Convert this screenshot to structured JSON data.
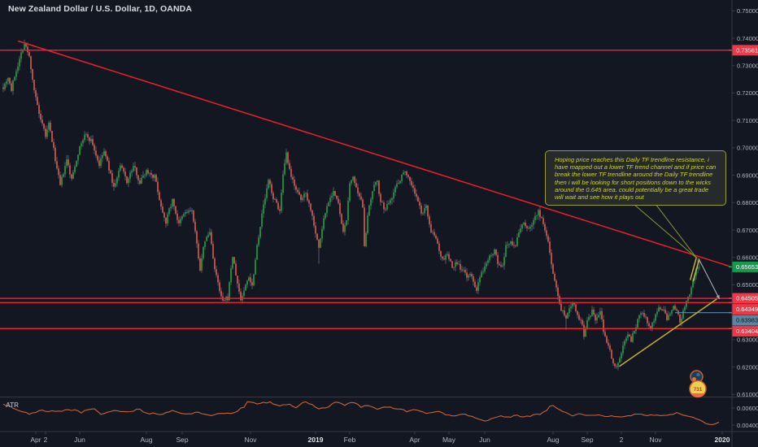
{
  "header": {
    "title": "New Zealand Dollar / U.S. Dollar, 1D, OANDA"
  },
  "annotation": {
    "lines": [
      "Hoping price reaches this Daily TF trendline resistance, i",
      "have mapped out a lower TF trend channel and if price can",
      "break the lower TF trendline around the Daily TF trendline",
      "then i will be looking for short positions down to the wicks",
      "around the 0.645 area. could potentially be a great trade",
      "will wait and see how it plays out"
    ]
  },
  "price_axis": {
    "labels": [
      "0.75000",
      "0.74000",
      "0.73000",
      "0.72000",
      "0.71000",
      "0.70000",
      "0.69000",
      "0.68000",
      "0.67000",
      "0.66000",
      "0.65000",
      "0.64000",
      "0.63000",
      "0.62000",
      "0.61000"
    ],
    "top_price": 0.75,
    "step": 0.01
  },
  "atr_axis": {
    "labels": [
      {
        "value": "0.00600",
        "v": 0.006
      },
      {
        "value": "0.00400",
        "v": 0.004
      }
    ]
  },
  "price_tags": [
    {
      "value": "0.73561",
      "price": 0.73561,
      "bg": "#f23645",
      "fg": "#ffffff"
    },
    {
      "value": "0.65653",
      "price": 0.65653,
      "bg": "#129a4d",
      "fg": "#ffffff"
    },
    {
      "value": "0.64505",
      "price": 0.64505,
      "bg": "#f23645",
      "fg": "#ffffff"
    },
    {
      "value": "0.64349",
      "price": 0.64349,
      "bg": "#f23645",
      "fg": "#ffffff"
    },
    {
      "value": "0.63983",
      "price": 0.63983,
      "bg": "#5e84a0",
      "fg": "#0e1320"
    },
    {
      "value": "0.63404",
      "price": 0.63404,
      "bg": "#f23645",
      "fg": "#ffffff"
    }
  ],
  "time_axis": [
    {
      "label": "Apr",
      "i": 20
    },
    {
      "label": "2",
      "i": 26
    },
    {
      "label": "Jun",
      "i": 47
    },
    {
      "label": "Aug",
      "i": 88
    },
    {
      "label": "Sep",
      "i": 110
    },
    {
      "label": "Nov",
      "i": 152
    },
    {
      "label": "2019",
      "i": 192,
      "year": true
    },
    {
      "label": "Feb",
      "i": 213
    },
    {
      "label": "Apr",
      "i": 253
    },
    {
      "label": "May",
      "i": 274
    },
    {
      "label": "Jun",
      "i": 296
    },
    {
      "label": "Aug",
      "i": 338
    },
    {
      "label": "Sep",
      "i": 359
    },
    {
      "label": "2",
      "i": 380
    },
    {
      "label": "Nov",
      "i": 401
    },
    {
      "label": "2020",
      "i": 442,
      "year": true
    }
  ],
  "chart_data": {
    "type": "candlestick",
    "up_color": "#1ea43f",
    "down_color": "#e8584a",
    "wick_color": "#73778a",
    "last_price": "0.65653",
    "price_anchors": [
      [
        0,
        0.7225
      ],
      [
        3,
        0.7265
      ],
      [
        5,
        0.7215
      ],
      [
        9,
        0.731
      ],
      [
        13,
        0.7386
      ],
      [
        16,
        0.733
      ],
      [
        20,
        0.718
      ],
      [
        23,
        0.709
      ],
      [
        26,
        0.7035
      ],
      [
        28,
        0.708
      ],
      [
        31,
        0.699
      ],
      [
        35,
        0.6855
      ],
      [
        39,
        0.695
      ],
      [
        42,
        0.688
      ],
      [
        46,
        0.699
      ],
      [
        50,
        0.7045
      ],
      [
        54,
        0.703
      ],
      [
        59,
        0.694
      ],
      [
        62,
        0.6985
      ],
      [
        68,
        0.6855
      ],
      [
        72,
        0.693
      ],
      [
        76,
        0.6875
      ],
      [
        80,
        0.693
      ],
      [
        84,
        0.688
      ],
      [
        88,
        0.692
      ],
      [
        93,
        0.69
      ],
      [
        97,
        0.679
      ],
      [
        100,
        0.674
      ],
      [
        104,
        0.681
      ],
      [
        108,
        0.672
      ],
      [
        112,
        0.676
      ],
      [
        116,
        0.677
      ],
      [
        119,
        0.664
      ],
      [
        121,
        0.656
      ],
      [
        124,
        0.666
      ],
      [
        127,
        0.669
      ],
      [
        130,
        0.656
      ],
      [
        133,
        0.647
      ],
      [
        135,
        0.643
      ],
      [
        138,
        0.6445
      ],
      [
        140,
        0.656
      ],
      [
        141,
        0.6605
      ],
      [
        144,
        0.65
      ],
      [
        146,
        0.6445
      ],
      [
        148,
        0.648
      ],
      [
        151,
        0.6535
      ],
      [
        153,
        0.65
      ],
      [
        156,
        0.665
      ],
      [
        159,
        0.676
      ],
      [
        163,
        0.6875
      ],
      [
        166,
        0.682
      ],
      [
        170,
        0.677
      ],
      [
        172,
        0.689
      ],
      [
        174,
        0.6965
      ],
      [
        177,
        0.688
      ],
      [
        180,
        0.6855
      ],
      [
        183,
        0.68
      ],
      [
        186,
        0.684
      ],
      [
        189,
        0.678
      ],
      [
        192,
        0.67
      ],
      [
        194,
        0.6635
      ],
      [
        197,
        0.674
      ],
      [
        200,
        0.681
      ],
      [
        203,
        0.685
      ],
      [
        206,
        0.679
      ],
      [
        209,
        0.668
      ],
      [
        211,
        0.674
      ],
      [
        213,
        0.686
      ],
      [
        215,
        0.69
      ],
      [
        218,
        0.682
      ],
      [
        221,
        0.678
      ],
      [
        222,
        0.665
      ],
      [
        224,
        0.675
      ],
      [
        227,
        0.683
      ],
      [
        230,
        0.6885
      ],
      [
        232,
        0.68
      ],
      [
        235,
        0.677
      ],
      [
        238,
        0.682
      ],
      [
        242,
        0.687
      ],
      [
        247,
        0.6925
      ],
      [
        251,
        0.687
      ],
      [
        254,
        0.682
      ],
      [
        257,
        0.676
      ],
      [
        260,
        0.678
      ],
      [
        263,
        0.67
      ],
      [
        267,
        0.665
      ],
      [
        270,
        0.659
      ],
      [
        273,
        0.661
      ],
      [
        276,
        0.656
      ],
      [
        279,
        0.658
      ],
      [
        282,
        0.655
      ],
      [
        285,
        0.653
      ],
      [
        288,
        0.6525
      ],
      [
        291,
        0.6485
      ],
      [
        293,
        0.652
      ],
      [
        296,
        0.656
      ],
      [
        299,
        0.662
      ],
      [
        302,
        0.6633
      ],
      [
        304,
        0.658
      ],
      [
        307,
        0.656
      ],
      [
        309,
        0.663
      ],
      [
        312,
        0.6665
      ],
      [
        315,
        0.664
      ],
      [
        317,
        0.669
      ],
      [
        320,
        0.673
      ],
      [
        323,
        0.67
      ],
      [
        326,
        0.674
      ],
      [
        329,
        0.6774
      ],
      [
        332,
        0.672
      ],
      [
        335,
        0.665
      ],
      [
        338,
        0.655
      ],
      [
        341,
        0.646
      ],
      [
        343,
        0.642
      ],
      [
        346,
        0.639
      ],
      [
        348,
        0.643
      ],
      [
        351,
        0.644
      ],
      [
        353,
        0.639
      ],
      [
        356,
        0.636
      ],
      [
        357,
        0.632
      ],
      [
        359,
        0.636
      ],
      [
        362,
        0.64
      ],
      [
        364,
        0.637
      ],
      [
        367,
        0.6398
      ],
      [
        369,
        0.633
      ],
      [
        372,
        0.628
      ],
      [
        374,
        0.624
      ],
      [
        377,
        0.6207
      ],
      [
        379,
        0.624
      ],
      [
        382,
        0.629
      ],
      [
        384,
        0.633
      ],
      [
        386,
        0.63
      ],
      [
        388,
        0.634
      ],
      [
        391,
        0.639
      ],
      [
        393,
        0.6405
      ],
      [
        396,
        0.637
      ],
      [
        398,
        0.634
      ],
      [
        401,
        0.639
      ],
      [
        403,
        0.642
      ],
      [
        406,
        0.64
      ],
      [
        408,
        0.637
      ],
      [
        410,
        0.639
      ],
      [
        412,
        0.641
      ],
      [
        414,
        0.6395
      ],
      [
        416,
        0.636
      ],
      [
        418,
        0.64
      ],
      [
        421,
        0.644
      ],
      [
        423,
        0.648
      ],
      [
        425,
        0.652
      ],
      [
        426,
        0.654
      ],
      [
        428,
        0.65653
      ]
    ],
    "wick_events": [
      {
        "i": 13,
        "high": 0.7395
      },
      {
        "i": 194,
        "low": 0.6577
      },
      {
        "i": 346,
        "low": 0.6335
      },
      {
        "i": 377,
        "low": 0.6193
      },
      {
        "i": 427,
        "high": 0.66
      },
      {
        "i": 428,
        "high": 0.6592
      }
    ],
    "lines": {
      "horizontal": [
        {
          "price": 0.73561,
          "color": "#ef1e2d"
        },
        {
          "price": 0.64505,
          "color": "#ef1e2d"
        },
        {
          "price": 0.64349,
          "color": "#ef1e2d"
        },
        {
          "price": 0.63404,
          "color": "#ef1e2d"
        }
      ],
      "trendline": {
        "from": [
          9,
          0.739
        ],
        "to": [
          449,
          0.6563
        ],
        "color": "#ef1e2d"
      },
      "support_ray": {
        "price": 0.63983,
        "from_i": 413,
        "to_i": 448,
        "color": "#5d87a5"
      },
      "yellow_trendline": {
        "from": [
          378.7,
          0.6202
        ],
        "to": [
          438.7,
          0.6448
        ],
        "color": "#bfae2e"
      },
      "channel": [
        {
          "from": [
            422.3,
            0.6517
          ],
          "to": [
            426.2,
            0.6601
          ],
          "color": "#cdbd35"
        },
        {
          "from": [
            424.1,
            0.6512
          ],
          "to": [
            427.9,
            0.6595
          ],
          "color": "#cdbd35"
        }
      ],
      "callout_anchor": [
        426.2,
        0.6598
      ],
      "arrow": {
        "from": [
          427.9,
          0.6591
        ],
        "to": [
          440.3,
          0.6448
        ],
        "color": "#a8abb5"
      }
    },
    "atr": {
      "label": "ATR",
      "color": "#cc6038",
      "anchors": [
        [
          0,
          0.0064
        ],
        [
          8,
          0.0059
        ],
        [
          16,
          0.0053
        ],
        [
          23,
          0.0057
        ],
        [
          33,
          0.0056
        ],
        [
          43,
          0.0058
        ],
        [
          48,
          0.0055
        ],
        [
          56,
          0.006
        ],
        [
          60,
          0.0053
        ],
        [
          68,
          0.0057
        ],
        [
          78,
          0.0055
        ],
        [
          83,
          0.0059
        ],
        [
          88,
          0.0054
        ],
        [
          98,
          0.0053
        ],
        [
          105,
          0.0057
        ],
        [
          113,
          0.0052
        ],
        [
          120,
          0.0055
        ],
        [
          128,
          0.0051
        ],
        [
          133,
          0.0054
        ],
        [
          140,
          0.0053
        ],
        [
          148,
          0.0061
        ],
        [
          150,
          0.0068
        ],
        [
          155,
          0.0065
        ],
        [
          163,
          0.0067
        ],
        [
          170,
          0.0063
        ],
        [
          175,
          0.0065
        ],
        [
          180,
          0.0061
        ],
        [
          185,
          0.0068
        ],
        [
          190,
          0.0063
        ],
        [
          195,
          0.0059
        ],
        [
          200,
          0.0062
        ],
        [
          205,
          0.0068
        ],
        [
          210,
          0.0063
        ],
        [
          215,
          0.0067
        ],
        [
          220,
          0.0061
        ],
        [
          225,
          0.0064
        ],
        [
          230,
          0.0058
        ],
        [
          235,
          0.0062
        ],
        [
          243,
          0.0059
        ],
        [
          248,
          0.0056
        ],
        [
          253,
          0.0058
        ],
        [
          260,
          0.0054
        ],
        [
          268,
          0.0056
        ],
        [
          273,
          0.0052
        ],
        [
          278,
          0.0051
        ],
        [
          283,
          0.0053
        ],
        [
          288,
          0.005
        ],
        [
          293,
          0.0047
        ],
        [
          296,
          0.0044
        ],
        [
          300,
          0.0048
        ],
        [
          305,
          0.0051
        ],
        [
          310,
          0.0049
        ],
        [
          315,
          0.0051
        ],
        [
          320,
          0.005
        ],
        [
          325,
          0.0051
        ],
        [
          330,
          0.0053
        ],
        [
          334,
          0.0057
        ],
        [
          337,
          0.0064
        ],
        [
          340,
          0.006
        ],
        [
          345,
          0.0055
        ],
        [
          350,
          0.0051
        ],
        [
          355,
          0.0053
        ],
        [
          360,
          0.0051
        ],
        [
          365,
          0.0052
        ],
        [
          370,
          0.005
        ],
        [
          375,
          0.0051
        ],
        [
          380,
          0.0049
        ],
        [
          385,
          0.0051
        ],
        [
          390,
          0.0053
        ],
        [
          395,
          0.0051
        ],
        [
          400,
          0.0052
        ],
        [
          405,
          0.005
        ],
        [
          410,
          0.0053
        ],
        [
          415,
          0.0054
        ],
        [
          420,
          0.0051
        ],
        [
          425,
          0.0049
        ],
        [
          430,
          0.0044
        ],
        [
          435,
          0.004
        ],
        [
          440,
          0.0043
        ]
      ]
    }
  },
  "avatar": {
    "badge_text": "731"
  }
}
